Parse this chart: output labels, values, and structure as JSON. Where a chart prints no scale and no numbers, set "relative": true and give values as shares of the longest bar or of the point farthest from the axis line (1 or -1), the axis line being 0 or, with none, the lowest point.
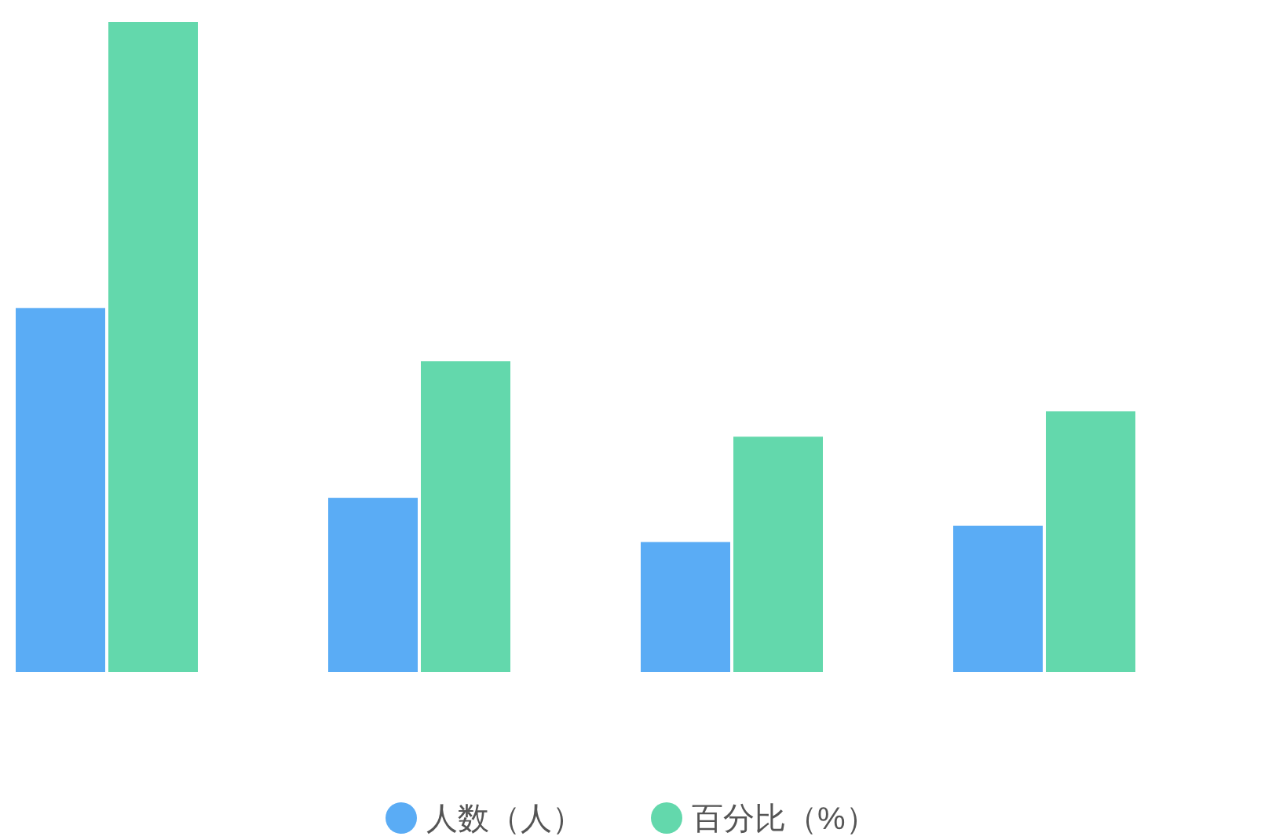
{
  "chart_data": {
    "type": "bar",
    "relative": true,
    "legend": "bottom",
    "categories": [
      null,
      null,
      null,
      null
    ],
    "series": [
      {
        "name": "人数（人）",
        "color": "#5aacf5",
        "values": [
          0.56,
          0.268,
          0.2,
          0.225
        ]
      },
      {
        "name": "百分比（%）",
        "color": "#63d8ac",
        "values": [
          1,
          0.478,
          0.362,
          0.401
        ]
      }
    ]
  }
}
